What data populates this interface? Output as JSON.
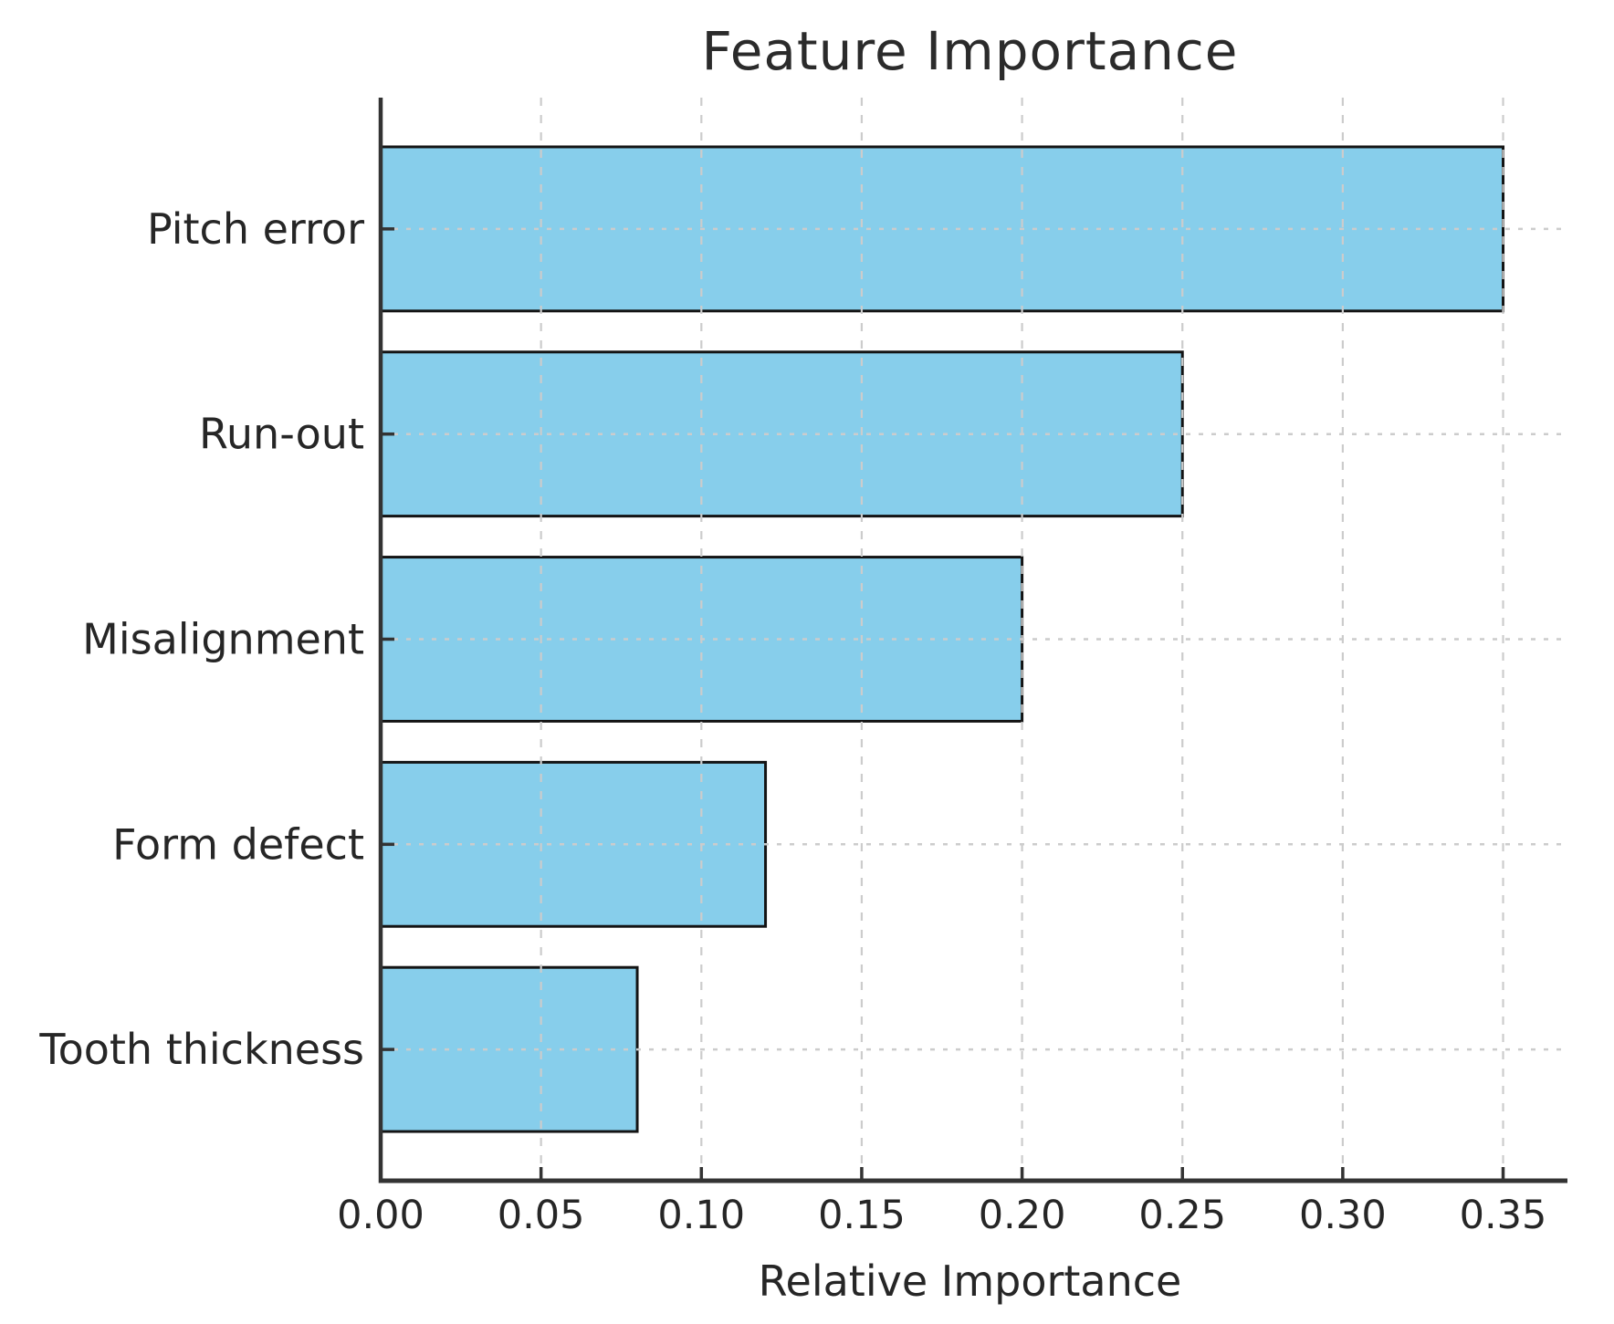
{
  "chart_data": {
    "type": "bar",
    "orientation": "horizontal",
    "title": "Feature Importance",
    "xlabel": "Relative Importance",
    "ylabel": "",
    "categories": [
      "Pitch error",
      "Run-out",
      "Misalignment",
      "Form defect",
      "Tooth thickness"
    ],
    "values": [
      0.35,
      0.25,
      0.2,
      0.12,
      0.08
    ],
    "x_ticks": [
      0.0,
      0.05,
      0.1,
      0.15,
      0.2,
      0.25,
      0.3,
      0.35
    ],
    "x_tick_labels": [
      "0.00",
      "0.05",
      "0.10",
      "0.15",
      "0.20",
      "0.25",
      "0.30",
      "0.35"
    ],
    "xlim": [
      0,
      0.3675
    ],
    "grid": true,
    "grid_style": "dashed",
    "grid_above_bars": true,
    "legend": null,
    "colors": {
      "bar_fill": "#87CEEB",
      "bar_edge": "#141414",
      "grid": "#cccccc",
      "spine": "#333333",
      "tick": "#333333",
      "text": "#262626",
      "background": "#ffffff"
    }
  }
}
